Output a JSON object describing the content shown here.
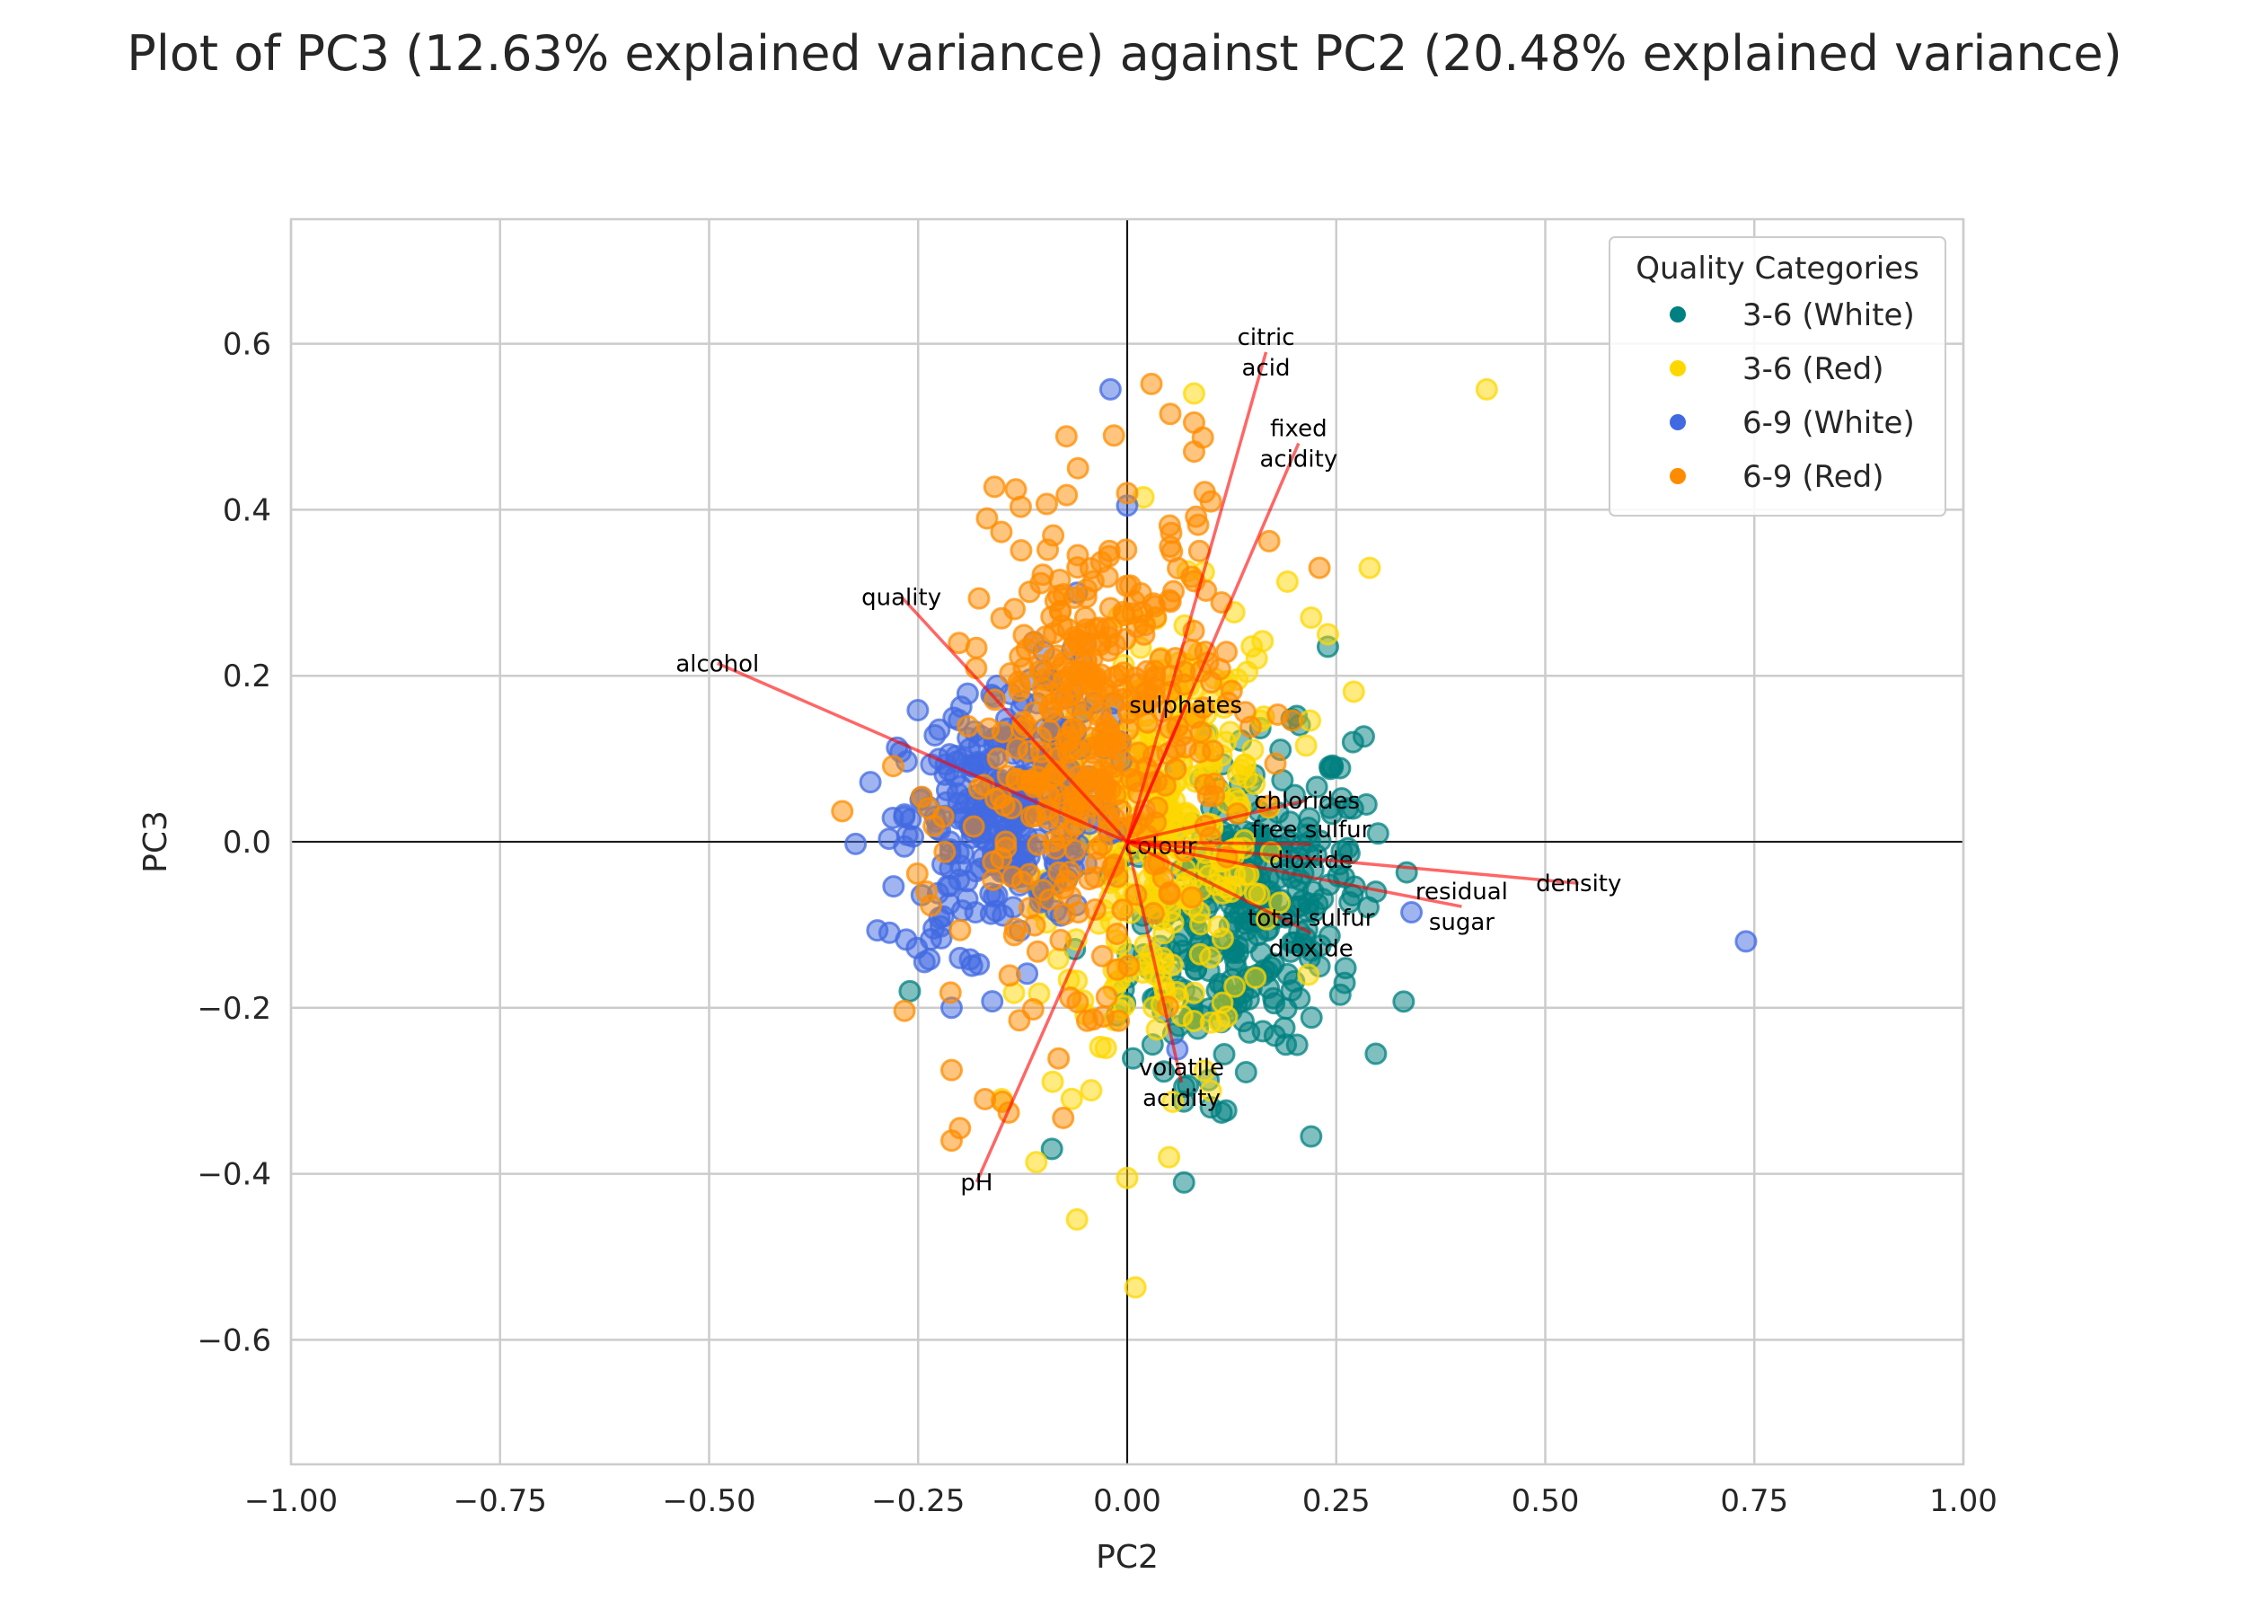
{
  "chart_data": {
    "type": "scatter",
    "title": "Plot of PC3 (12.63% explained variance) against PC2 (20.48% explained variance)",
    "xlabel": "PC2",
    "ylabel": "PC3",
    "xlim": [
      -1.0,
      1.0
    ],
    "ylim": [
      -0.75,
      0.75
    ],
    "xticks": [
      -1.0,
      -0.75,
      -0.5,
      -0.25,
      0.0,
      0.25,
      0.5,
      0.75,
      1.0
    ],
    "xtick_labels": [
      "−1.00",
      "−0.75",
      "−0.50",
      "−0.25",
      "0.00",
      "0.25",
      "0.50",
      "0.75",
      "1.00"
    ],
    "yticks": [
      0.6,
      0.4,
      0.2,
      0.0,
      -0.2,
      -0.4,
      -0.6
    ],
    "ytick_labels": [
      "0.6",
      "0.4",
      "0.2",
      "0.0",
      "−0.2",
      "−0.4",
      "−0.6"
    ],
    "grid": true,
    "legend": {
      "title": "Quality Categories",
      "placement": "top-right"
    },
    "series": [
      {
        "name": "3-6 (White)",
        "color": "#008080",
        "center": [
          0.14,
          -0.08
        ],
        "spread": [
          0.07,
          0.09
        ],
        "count": 320,
        "points": [
          [
            -0.26,
            -0.18
          ],
          [
            0.22,
            -0.355
          ],
          [
            0.26,
            -0.17
          ],
          [
            -0.09,
            -0.37
          ],
          [
            0.1,
            -0.32
          ],
          [
            0.27,
            0.12
          ],
          [
            0.24,
            0.235
          ],
          [
            0.27,
            0.04
          ],
          [
            0.3,
            0.01
          ],
          [
            0.23,
            -0.15
          ]
        ]
      },
      {
        "name": "3-6 (Red)",
        "color": "#FFD700",
        "center": [
          0.05,
          0.0
        ],
        "spread": [
          0.07,
          0.13
        ],
        "count": 320,
        "points": [
          [
            0.43,
            0.545
          ],
          [
            0.08,
            0.54
          ],
          [
            -0.06,
            -0.455
          ],
          [
            0.0,
            -0.405
          ],
          [
            0.29,
            0.33
          ],
          [
            0.22,
            0.27
          ],
          [
            -0.15,
            -0.31
          ],
          [
            0.05,
            -0.38
          ],
          [
            0.1,
            -0.3
          ],
          [
            0.24,
            0.25
          ]
        ]
      },
      {
        "name": "6-9 (White)",
        "color": "#4169E1",
        "center": [
          -0.15,
          0.04
        ],
        "spread": [
          0.06,
          0.08
        ],
        "count": 320,
        "points": [
          [
            0.74,
            -0.12
          ],
          [
            0.34,
            -0.085
          ],
          [
            -0.02,
            0.545
          ],
          [
            0.0,
            0.405
          ],
          [
            -0.06,
            0.3
          ],
          [
            -0.23,
            0.03
          ],
          [
            -0.21,
            -0.2
          ],
          [
            0.06,
            -0.25
          ],
          [
            -0.2,
            -0.14
          ],
          [
            -0.22,
            -0.09
          ]
        ]
      },
      {
        "name": "6-9 (Red)",
        "color": "#FF8C00",
        "center": [
          -0.04,
          0.12
        ],
        "spread": [
          0.08,
          0.14
        ],
        "count": 420,
        "points": [
          [
            -0.21,
            -0.36
          ],
          [
            -0.2,
            -0.345
          ],
          [
            -0.21,
            -0.275
          ],
          [
            -0.24,
            -0.06
          ],
          [
            0.08,
            0.505
          ],
          [
            0.08,
            0.47
          ],
          [
            0.1,
            0.41
          ],
          [
            0.23,
            0.33
          ],
          [
            -0.17,
            -0.31
          ],
          [
            0.0,
            0.42
          ]
        ]
      }
    ],
    "loadings": [
      {
        "name": "citric acid",
        "label_lines": [
          "citric",
          "acid"
        ],
        "x": 0.166,
        "y": 0.59
      },
      {
        "name": "fixed acidity",
        "label_lines": [
          "fixed",
          "acidity"
        ],
        "x": 0.205,
        "y": 0.48
      },
      {
        "name": "quality",
        "label_lines": [
          "quality"
        ],
        "x": -0.27,
        "y": 0.295
      },
      {
        "name": "alcohol",
        "label_lines": [
          "alcohol"
        ],
        "x": -0.49,
        "y": 0.215
      },
      {
        "name": "sulphates",
        "label_lines": [
          "sulphates"
        ],
        "x": 0.07,
        "y": 0.165
      },
      {
        "name": "chlorides",
        "label_lines": [
          "chlorides"
        ],
        "x": 0.215,
        "y": 0.05
      },
      {
        "name": "free sulfur dioxide",
        "label_lines": [
          "free sulfur",
          "dioxide"
        ],
        "x": 0.22,
        "y": -0.003
      },
      {
        "name": "colour",
        "label_lines": [
          "colour"
        ],
        "x": 0.04,
        "y": -0.005
      },
      {
        "name": "density",
        "label_lines": [
          "density"
        ],
        "x": 0.54,
        "y": -0.05
      },
      {
        "name": "residual sugar",
        "label_lines": [
          "residual",
          "sugar"
        ],
        "x": 0.4,
        "y": -0.078
      },
      {
        "name": "total sulfur dioxide",
        "label_lines": [
          "total sulfur",
          "dioxide"
        ],
        "x": 0.22,
        "y": -0.11
      },
      {
        "name": "volatile acidity",
        "label_lines": [
          "volatile",
          "acidity"
        ],
        "x": 0.065,
        "y": -0.29
      },
      {
        "name": "pH",
        "label_lines": [
          "pH"
        ],
        "x": -0.18,
        "y": -0.41
      }
    ],
    "loading_color": "#FF0000"
  }
}
